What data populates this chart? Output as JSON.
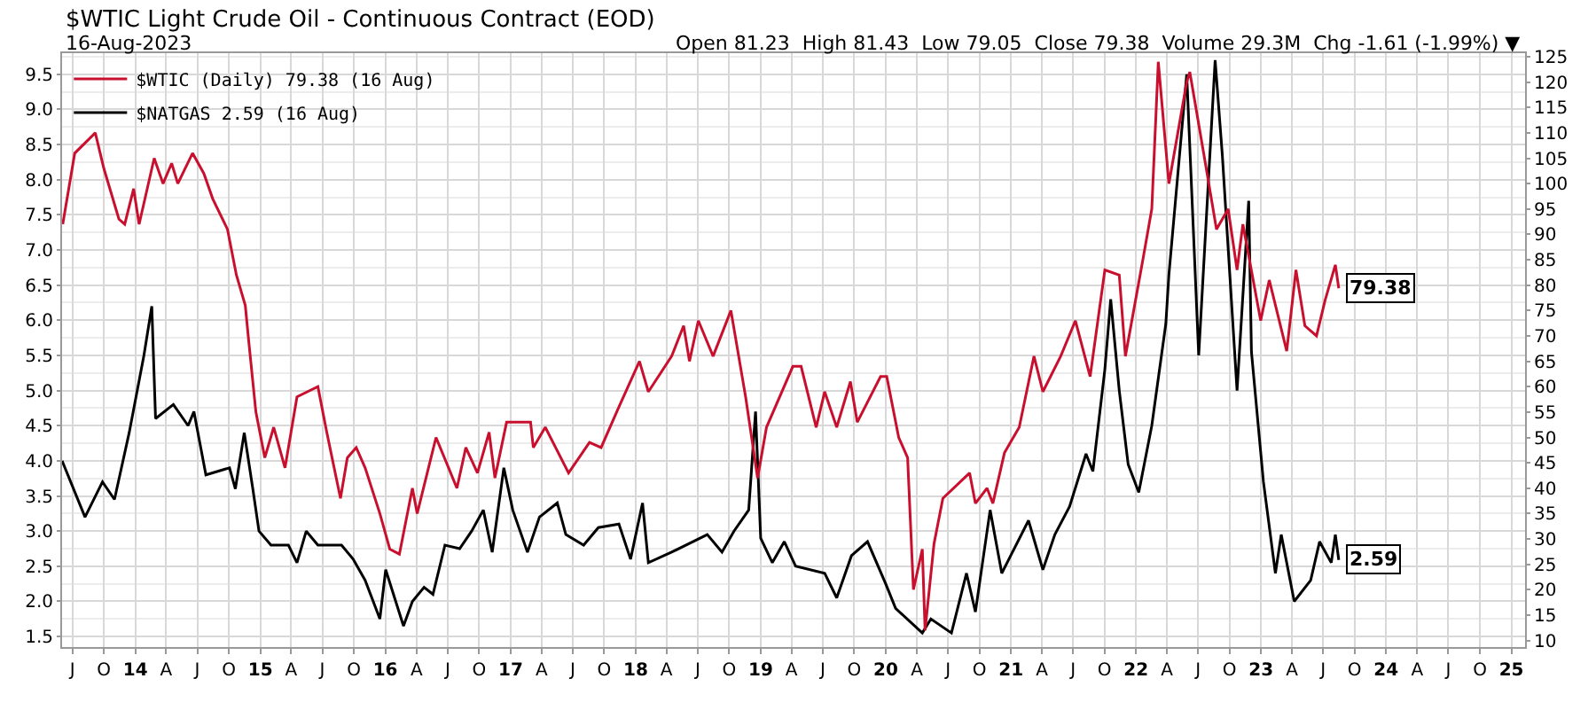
{
  "chart_data": {
    "type": "line",
    "title": "$WTIC Light Crude Oil - Continuous Contract (EOD)",
    "subtitle": "16-Aug-2023",
    "annotations": [
      "Open 81.23  High 81.43  Low 79.05  Close 79.38  Volume 29.3M  Chg -1.61 (-1.99%) ▼"
    ],
    "legend": "top left",
    "grid": true,
    "xlim": [
      "2013-06-01",
      "2025-02-10"
    ],
    "xticks": [
      {
        "value": "2013-07-01",
        "label": "J"
      },
      {
        "value": "2013-10-01",
        "label": "O"
      },
      {
        "value": "2014-01-01",
        "label": "14"
      },
      {
        "value": "2014-04-01",
        "label": "A"
      },
      {
        "value": "2014-07-01",
        "label": "J"
      },
      {
        "value": "2014-10-01",
        "label": "O"
      },
      {
        "value": "2015-01-01",
        "label": "15"
      },
      {
        "value": "2015-04-01",
        "label": "A"
      },
      {
        "value": "2015-07-01",
        "label": "J"
      },
      {
        "value": "2015-10-01",
        "label": "O"
      },
      {
        "value": "2016-01-01",
        "label": "16"
      },
      {
        "value": "2016-04-01",
        "label": "A"
      },
      {
        "value": "2016-07-01",
        "label": "J"
      },
      {
        "value": "2016-10-01",
        "label": "O"
      },
      {
        "value": "2017-01-01",
        "label": "17"
      },
      {
        "value": "2017-04-01",
        "label": "A"
      },
      {
        "value": "2017-07-01",
        "label": "J"
      },
      {
        "value": "2017-10-01",
        "label": "O"
      },
      {
        "value": "2018-01-01",
        "label": "18"
      },
      {
        "value": "2018-04-01",
        "label": "A"
      },
      {
        "value": "2018-07-01",
        "label": "J"
      },
      {
        "value": "2018-10-01",
        "label": "O"
      },
      {
        "value": "2019-01-01",
        "label": "19"
      },
      {
        "value": "2019-04-01",
        "label": "A"
      },
      {
        "value": "2019-07-01",
        "label": "J"
      },
      {
        "value": "2019-10-01",
        "label": "O"
      },
      {
        "value": "2020-01-01",
        "label": "20"
      },
      {
        "value": "2020-04-01",
        "label": "A"
      },
      {
        "value": "2020-07-01",
        "label": "J"
      },
      {
        "value": "2020-10-01",
        "label": "O"
      },
      {
        "value": "2021-01-01",
        "label": "21"
      },
      {
        "value": "2021-04-01",
        "label": "A"
      },
      {
        "value": "2021-07-01",
        "label": "J"
      },
      {
        "value": "2021-10-01",
        "label": "O"
      },
      {
        "value": "2022-01-01",
        "label": "22"
      },
      {
        "value": "2022-04-01",
        "label": "A"
      },
      {
        "value": "2022-07-01",
        "label": "J"
      },
      {
        "value": "2022-10-01",
        "label": "O"
      },
      {
        "value": "2023-01-01",
        "label": "23"
      },
      {
        "value": "2023-04-01",
        "label": "A"
      },
      {
        "value": "2023-07-01",
        "label": "J"
      },
      {
        "value": "2023-10-01",
        "label": "O"
      },
      {
        "value": "2024-01-01",
        "label": "24"
      },
      {
        "value": "2024-04-01",
        "label": "A"
      },
      {
        "value": "2024-07-01",
        "label": "J"
      },
      {
        "value": "2024-10-01",
        "label": "O"
      },
      {
        "value": "2025-01-01",
        "label": "25"
      }
    ],
    "ylim": [
      1.35,
      9.8
    ],
    "yticks": [
      {
        "value": 1.5,
        "label": "1.5"
      },
      {
        "value": 2,
        "label": "2.0"
      },
      {
        "value": 2.5,
        "label": "2.5"
      },
      {
        "value": 3,
        "label": "3.0"
      },
      {
        "value": 3.5,
        "label": "3.5"
      },
      {
        "value": 4,
        "label": "4.0"
      },
      {
        "value": 4.5,
        "label": "4.5"
      },
      {
        "value": 5,
        "label": "5.0"
      },
      {
        "value": 5.5,
        "label": "5.5"
      },
      {
        "value": 6,
        "label": "6.0"
      },
      {
        "value": 6.5,
        "label": "6.5"
      },
      {
        "value": 7,
        "label": "7.0"
      },
      {
        "value": 7.5,
        "label": "7.5"
      },
      {
        "value": 8,
        "label": "8.0"
      },
      {
        "value": 8.5,
        "label": "8.5"
      },
      {
        "value": 9,
        "label": "9.0"
      },
      {
        "value": 9.5,
        "label": "9.5"
      }
    ],
    "y2lim": [
      8.7,
      125.7
    ],
    "y2ticks": [
      10,
      15,
      20,
      25,
      30,
      35,
      40,
      45,
      50,
      55,
      60,
      65,
      70,
      75,
      80,
      85,
      90,
      95,
      100,
      105,
      110,
      115,
      120,
      125
    ],
    "series": [
      {
        "name": "$WTIC (Daily) 79.38 (16 Aug)",
        "color": "#c8102e",
        "axis": "y2",
        "x": [
          "2013-06-03",
          "2013-07-08",
          "2013-09-06",
          "2013-10-01",
          "2013-11-14",
          "2013-12-01",
          "2013-12-27",
          "2014-01-12",
          "2014-02-25",
          "2014-03-23",
          "2014-04-17",
          "2014-05-05",
          "2014-06-17",
          "2014-07-20",
          "2014-08-15",
          "2014-09-27",
          "2014-10-23",
          "2014-11-18",
          "2014-11-28",
          "2014-12-19",
          "2015-01-14",
          "2015-02-09",
          "2015-03-14",
          "2015-04-18",
          "2015-06-18",
          "2015-07-14",
          "2015-08-23",
          "2015-09-12",
          "2015-10-08",
          "2015-11-03",
          "2015-12-16",
          "2016-01-14",
          "2016-02-11",
          "2016-03-20",
          "2016-04-03",
          "2016-05-28",
          "2016-07-28",
          "2016-08-23",
          "2016-09-26",
          "2016-10-30",
          "2016-11-16",
          "2016-12-20",
          "2017-02-28",
          "2017-03-08",
          "2017-04-12",
          "2017-06-19",
          "2017-08-19",
          "2017-09-22",
          "2017-11-13",
          "2018-01-12",
          "2018-02-07",
          "2018-04-16",
          "2018-05-21",
          "2018-06-07",
          "2018-07-03",
          "2018-08-15",
          "2018-10-06",
          "2018-11-18",
          "2018-12-23",
          "2019-01-18",
          "2019-04-05",
          "2019-04-29",
          "2019-06-12",
          "2019-07-07",
          "2019-08-11",
          "2019-09-20",
          "2019-10-10",
          "2019-12-17",
          "2020-01-04",
          "2020-02-08",
          "2020-03-05",
          "2020-03-22",
          "2020-04-17",
          "2020-04-25",
          "2020-05-21",
          "2020-06-16",
          "2020-09-02",
          "2020-09-19",
          "2020-10-23",
          "2020-11-09",
          "2020-12-13",
          "2021-01-25",
          "2021-03-09",
          "2021-04-04",
          "2021-05-26",
          "2021-07-08",
          "2021-08-20",
          "2021-10-02",
          "2021-11-13",
          "2021-12-01",
          "2022-01-21",
          "2022-02-16",
          "2022-03-07",
          "2022-04-07",
          "2022-05-29",
          "2022-06-07",
          "2022-07-20",
          "2022-08-24",
          "2022-09-27",
          "2022-10-23",
          "2022-11-09",
          "2022-12-31",
          "2023-01-25",
          "2023-03-17",
          "2023-04-13",
          "2023-05-09",
          "2023-06-12",
          "2023-07-07",
          "2023-08-06",
          "2023-08-16"
        ],
        "values": [
          92,
          106,
          110,
          103,
          93,
          92,
          99,
          92,
          105,
          100,
          104,
          100,
          106,
          102,
          97,
          91,
          82,
          76,
          69,
          55,
          46,
          52,
          44,
          58,
          60,
          51,
          38,
          46,
          48,
          44,
          35,
          28,
          27,
          40,
          35,
          50,
          40,
          48,
          43,
          51,
          42,
          53,
          53,
          48,
          52,
          43,
          49,
          48,
          56,
          65,
          59,
          66,
          72,
          65,
          73,
          66,
          75,
          58,
          42,
          52,
          64,
          64,
          52,
          59,
          52,
          61,
          53,
          62,
          62,
          50,
          46,
          20,
          28,
          12,
          29,
          38,
          43,
          37,
          40,
          37,
          47,
          52,
          66,
          59,
          66,
          73,
          62,
          83,
          82,
          66,
          85,
          95,
          124,
          100,
          120,
          122,
          105,
          91,
          95,
          83,
          92,
          73,
          81,
          67,
          83,
          72,
          70,
          77,
          84,
          79.38
        ],
        "value_labels": [
          null,
          null,
          null,
          null,
          null,
          null,
          null,
          null,
          null,
          null,
          null,
          null,
          null,
          null,
          null,
          null,
          null,
          null,
          null,
          null,
          null,
          null,
          null,
          null,
          null,
          null,
          null,
          null,
          null,
          null,
          null,
          null,
          null,
          null,
          null,
          null,
          null,
          null,
          null,
          null,
          null,
          null,
          null,
          null,
          null,
          null,
          null,
          null,
          null,
          null,
          null,
          null,
          null,
          null,
          null,
          null,
          null,
          null,
          null,
          null,
          null,
          null,
          null,
          null,
          null,
          null,
          null,
          null,
          null,
          null,
          null,
          null,
          null,
          null,
          null,
          null,
          null,
          null,
          null,
          null,
          null,
          null,
          null,
          null,
          null,
          null,
          null,
          null,
          null,
          null,
          null,
          null,
          null,
          null,
          null,
          null,
          null,
          null,
          null,
          null,
          null,
          null,
          null,
          null,
          null,
          null,
          null,
          null,
          null,
          "79.38"
        ]
      },
      {
        "name": "$NATGAS 2.59 (16 Aug)",
        "color": "#000000",
        "axis": "y",
        "x": [
          "2013-06-01",
          "2013-08-07",
          "2013-09-27",
          "2013-11-01",
          "2013-12-14",
          "2014-01-26",
          "2014-02-18",
          "2014-03-01",
          "2014-04-22",
          "2014-06-04",
          "2014-06-21",
          "2014-07-26",
          "2014-10-03",
          "2014-10-20",
          "2014-11-15",
          "2014-12-10",
          "2014-12-28",
          "2015-02-01",
          "2015-03-24",
          "2015-04-18",
          "2015-05-15",
          "2015-06-18",
          "2015-08-26",
          "2015-09-29",
          "2015-11-03",
          "2015-12-16",
          "2016-01-02",
          "2016-02-23",
          "2016-03-20",
          "2016-04-23",
          "2016-05-19",
          "2016-06-23",
          "2016-08-05",
          "2016-09-09",
          "2016-10-13",
          "2016-11-08",
          "2016-12-12",
          "2017-01-07",
          "2017-02-19",
          "2017-03-26",
          "2017-05-17",
          "2017-06-11",
          "2017-08-02",
          "2017-09-14",
          "2017-11-13",
          "2017-12-17",
          "2018-01-21",
          "2018-02-07",
          "2018-04-16",
          "2018-07-29",
          "2018-09-10",
          "2018-10-15",
          "2018-11-27",
          "2018-12-17",
          "2019-01-01",
          "2019-02-04",
          "2019-03-11",
          "2019-04-13",
          "2019-07-07",
          "2019-08-11",
          "2019-09-23",
          "2019-11-09",
          "2020-01-01",
          "2020-01-30",
          "2020-04-17",
          "2020-05-12",
          "2020-07-11",
          "2020-08-24",
          "2020-09-19",
          "2020-11-01",
          "2020-12-05",
          "2020-12-31",
          "2021-02-21",
          "2021-04-04",
          "2021-05-09",
          "2021-06-21",
          "2021-08-08",
          "2021-08-28",
          "2021-10-02",
          "2021-10-19",
          "2021-11-13",
          "2021-12-09",
          "2022-01-09",
          "2022-02-16",
          "2022-03-29",
          "2022-04-07",
          "2022-05-29",
          "2022-07-03",
          "2022-08-20",
          "2022-09-10",
          "2022-10-23",
          "2022-11-26",
          "2022-12-04",
          "2023-01-08",
          "2023-02-12",
          "2023-03-01",
          "2023-04-08",
          "2023-05-26",
          "2023-06-21",
          "2023-07-25",
          "2023-08-06",
          "2023-08-16"
        ],
        "values": [
          4.0,
          3.2,
          3.7,
          3.45,
          4.4,
          5.5,
          6.2,
          4.6,
          4.8,
          4.5,
          4.7,
          3.8,
          3.9,
          3.6,
          4.4,
          3.6,
          3.0,
          2.8,
          2.8,
          2.55,
          3.0,
          2.8,
          2.8,
          2.6,
          2.3,
          1.75,
          2.45,
          1.65,
          2.0,
          2.2,
          2.1,
          2.8,
          2.75,
          3.0,
          3.3,
          2.7,
          3.9,
          3.3,
          2.7,
          3.2,
          3.4,
          2.95,
          2.8,
          3.05,
          3.1,
          2.6,
          3.4,
          2.55,
          2.7,
          2.95,
          2.7,
          3.0,
          3.3,
          4.7,
          2.9,
          2.55,
          2.85,
          2.5,
          2.4,
          2.05,
          2.65,
          2.85,
          2.25,
          1.9,
          1.55,
          1.75,
          1.55,
          2.4,
          1.85,
          3.3,
          2.4,
          2.65,
          3.15,
          2.45,
          2.95,
          3.35,
          4.1,
          3.85,
          5.3,
          6.3,
          5.0,
          3.95,
          3.55,
          4.5,
          5.95,
          6.65,
          9.5,
          5.5,
          9.7,
          8.35,
          5.0,
          7.7,
          5.55,
          3.7,
          2.4,
          2.95,
          2.0,
          2.3,
          2.85,
          2.55,
          2.95,
          2.59
        ],
        "value_labels": [
          null,
          null,
          null,
          null,
          null,
          null,
          null,
          null,
          null,
          null,
          null,
          null,
          null,
          null,
          null,
          null,
          null,
          null,
          null,
          null,
          null,
          null,
          null,
          null,
          null,
          null,
          null,
          null,
          null,
          null,
          null,
          null,
          null,
          null,
          null,
          null,
          null,
          null,
          null,
          null,
          null,
          null,
          null,
          null,
          null,
          null,
          null,
          null,
          null,
          null,
          null,
          null,
          null,
          null,
          null,
          null,
          null,
          null,
          null,
          null,
          null,
          null,
          null,
          null,
          null,
          null,
          null,
          null,
          null,
          null,
          null,
          null,
          null,
          null,
          null,
          null,
          null,
          null,
          null,
          null,
          null,
          null,
          null,
          null,
          null,
          null,
          null,
          null,
          null,
          null,
          null,
          null,
          null,
          null,
          null,
          null,
          null,
          null,
          null,
          null,
          null,
          "2.59"
        ]
      }
    ]
  }
}
